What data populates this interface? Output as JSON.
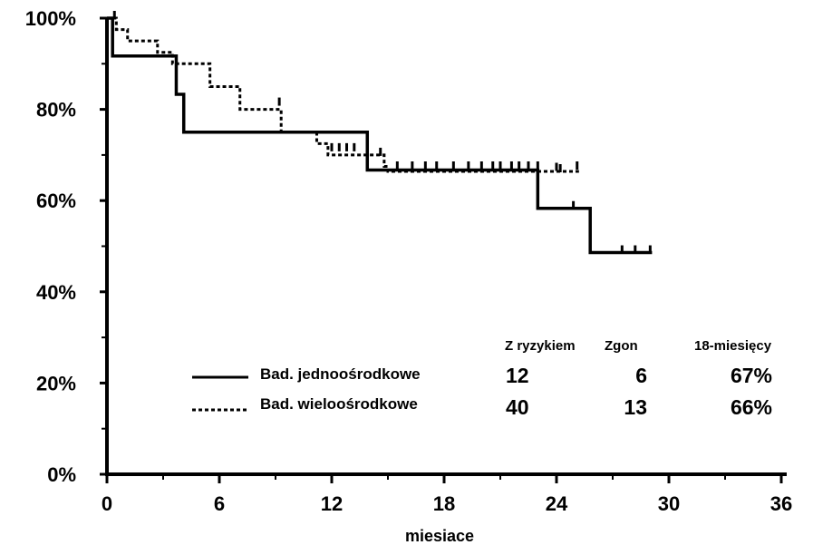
{
  "chart_data": {
    "type": "line",
    "title": "",
    "xlabel": "miesiace",
    "ylabel": "",
    "xlim": [
      0,
      36
    ],
    "ylim": [
      0,
      100
    ],
    "x_ticks": [
      0,
      6,
      12,
      18,
      24,
      30,
      36
    ],
    "y_ticks": [
      0,
      20,
      40,
      60,
      80,
      100
    ],
    "x_tick_labels": [
      "0",
      "6",
      "12",
      "18",
      "24",
      "30",
      "36"
    ],
    "y_tick_labels": [
      "0%",
      "20%",
      "40%",
      "60%",
      "80%",
      "100%"
    ],
    "grid": false,
    "legend_placement": "bottom-center",
    "series": [
      {
        "name": "Bad. jednoośrodkowe",
        "line_style": "solid",
        "steps": [
          [
            0,
            100
          ],
          [
            0.3,
            91.7
          ],
          [
            3.7,
            83.3
          ],
          [
            4.1,
            75
          ],
          [
            13.9,
            66.7
          ],
          [
            23,
            58.3
          ],
          [
            25.8,
            48.6
          ],
          [
            29.1,
            48.6
          ]
        ],
        "censored": [
          [
            24,
            66.7
          ],
          [
            24.9,
            58.3
          ],
          [
            27.5,
            48.6
          ],
          [
            28.2,
            48.6
          ],
          [
            29,
            48.6
          ]
        ]
      },
      {
        "name": "Bad. wieloośrodkowe",
        "line_style": "dotted",
        "steps": [
          [
            0,
            100
          ],
          [
            0.5,
            97.5
          ],
          [
            1.1,
            95
          ],
          [
            2.7,
            92.5
          ],
          [
            3.5,
            90
          ],
          [
            5.5,
            85
          ],
          [
            7.1,
            80
          ],
          [
            9.3,
            75
          ],
          [
            11.2,
            72.5
          ],
          [
            11.8,
            70
          ],
          [
            14.8,
            67.5
          ],
          [
            15,
            66.4
          ],
          [
            25.2,
            66.4
          ]
        ],
        "censored": [
          [
            0.4,
            100
          ],
          [
            9.2,
            81
          ],
          [
            12,
            71
          ],
          [
            12.4,
            71
          ],
          [
            12.8,
            71
          ],
          [
            13.2,
            71
          ],
          [
            14.6,
            70
          ],
          [
            15.5,
            67
          ],
          [
            16.3,
            67
          ],
          [
            17,
            67
          ],
          [
            17.6,
            67
          ],
          [
            18.5,
            67
          ],
          [
            19.3,
            67
          ],
          [
            20,
            67
          ],
          [
            20.6,
            67
          ],
          [
            21,
            67
          ],
          [
            21.6,
            67
          ],
          [
            22,
            67
          ],
          [
            22.5,
            67
          ],
          [
            23,
            67
          ],
          [
            24.2,
            66.4
          ],
          [
            25.1,
            67
          ]
        ]
      }
    ]
  },
  "legend": [
    {
      "label": "Bad. jednoośrodkowe",
      "style": "solid"
    },
    {
      "label": "Bad. wieloośrodkowe",
      "style": "dotted"
    }
  ],
  "risk_table": {
    "headers": [
      "Z ryzykiem",
      "Zgon",
      "18-miesięcy"
    ],
    "rows": [
      {
        "at_risk": "12",
        "deaths": "6",
        "survival_18m": "67%"
      },
      {
        "at_risk": "40",
        "deaths": "13",
        "survival_18m": "66%"
      }
    ]
  }
}
